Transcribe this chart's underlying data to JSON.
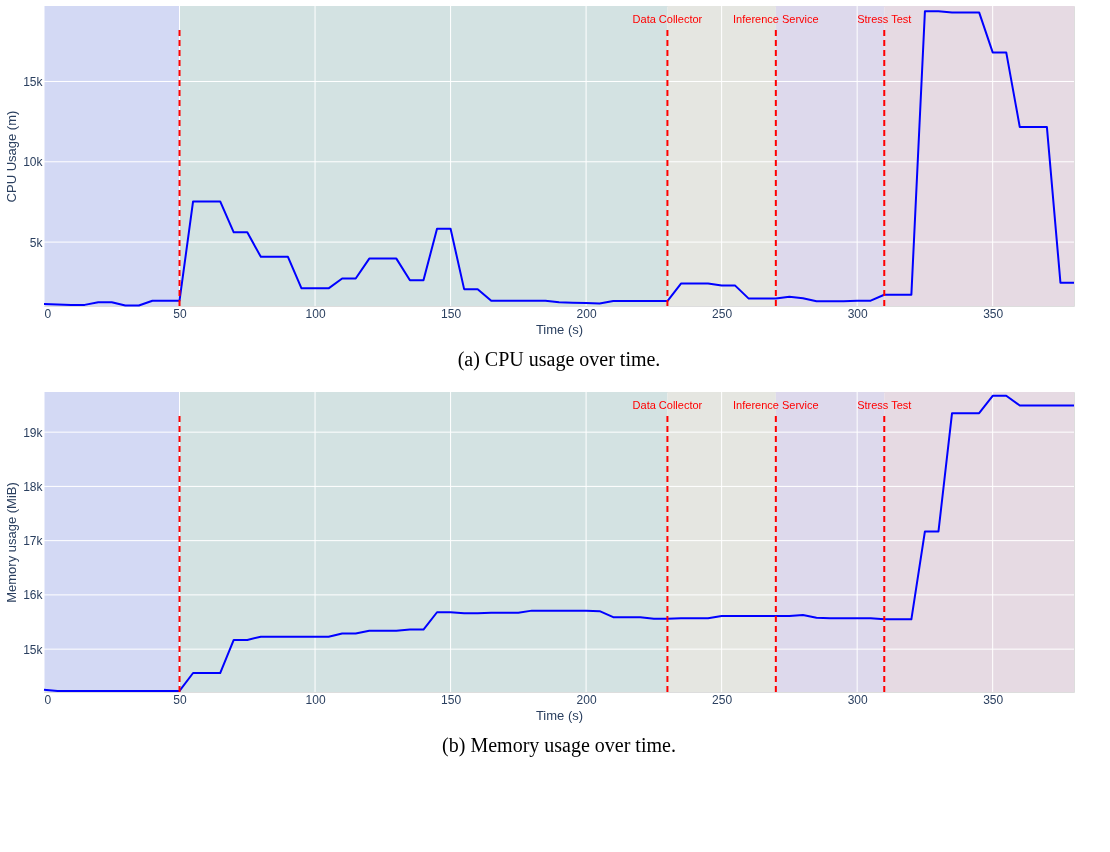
{
  "chart_data": [
    {
      "type": "line",
      "xlabel": "Time (s)",
      "ylabel": "CPU Usage (m)",
      "annotations": [
        "(a) CPU usage over time."
      ],
      "x": [
        0,
        5,
        10,
        15,
        20,
        25,
        30,
        35,
        40,
        45,
        50,
        55,
        60,
        65,
        70,
        75,
        80,
        85,
        90,
        95,
        100,
        105,
        110,
        115,
        120,
        125,
        130,
        135,
        140,
        145,
        150,
        155,
        160,
        165,
        170,
        175,
        180,
        185,
        190,
        195,
        200,
        205,
        210,
        215,
        220,
        225,
        230,
        235,
        240,
        245,
        250,
        255,
        260,
        265,
        270,
        275,
        280,
        285,
        290,
        295,
        300,
        305,
        310,
        315,
        320,
        325,
        330,
        335,
        340,
        345,
        350,
        355,
        360,
        365,
        370,
        375,
        380
      ],
      "series": [
        {
          "color": "#0000ff",
          "values": [
            1140,
            1110,
            1090,
            1090,
            1250,
            1250,
            1050,
            1050,
            1350,
            1350,
            1350,
            7530,
            7530,
            7530,
            5610,
            5610,
            4080,
            4080,
            4080,
            2120,
            2120,
            2120,
            2730,
            2730,
            3970,
            3970,
            3970,
            2620,
            2620,
            5830,
            5830,
            2070,
            2070,
            1350,
            1350,
            1350,
            1350,
            1350,
            1250,
            1230,
            1200,
            1180,
            1330,
            1330,
            1330,
            1330,
            1330,
            2420,
            2420,
            2420,
            2290,
            2290,
            1480,
            1480,
            1480,
            1590,
            1500,
            1310,
            1310,
            1310,
            1350,
            1350,
            1720,
            1720,
            1720,
            19370,
            19370,
            19300,
            19300,
            19300,
            16810,
            16810,
            12160,
            12160,
            12160,
            2470,
            2470
          ]
        }
      ],
      "xlim": [
        0,
        380
      ],
      "ylim": [
        1020,
        19700
      ],
      "xticks": [
        0,
        50,
        100,
        150,
        200,
        250,
        300,
        350
      ],
      "yticks": [
        {
          "value": 5000,
          "label": "5k"
        },
        {
          "value": 10000,
          "label": "10k"
        },
        {
          "value": 15000,
          "label": "15k"
        }
      ],
      "grid": true,
      "line_style": "solid",
      "marker": "none",
      "ref_lines": [
        {
          "axis": "x",
          "value": 50,
          "color": "#ff0000",
          "line_style": "dashed"
        },
        {
          "axis": "x",
          "value": 230,
          "label": "Data Collector",
          "color": "#ff0000",
          "line_style": "dashed"
        },
        {
          "axis": "x",
          "value": 270,
          "label": "Inference Service",
          "color": "#ff0000",
          "line_style": "dashed"
        },
        {
          "axis": "x",
          "value": 310,
          "label": "Stress Test",
          "color": "#ff0000",
          "line_style": "dashed"
        }
      ],
      "bands": [
        {
          "axis": "x",
          "from": 0,
          "to": 50,
          "color": "#d3d9f4"
        },
        {
          "axis": "x",
          "from": 50,
          "to": 230,
          "color": "#d3e2e2"
        },
        {
          "axis": "x",
          "from": 230,
          "to": 270,
          "color": "#e5e6e1"
        },
        {
          "axis": "x",
          "from": 270,
          "to": 310,
          "color": "#ddd9ec"
        },
        {
          "axis": "x",
          "from": 310,
          "to": 380,
          "color": "#e6dae3"
        }
      ]
    },
    {
      "type": "line",
      "xlabel": "Time (s)",
      "ylabel": "Memory usage (MiB)",
      "annotations": [
        "(b) Memory usage over time."
      ],
      "x": [
        0,
        5,
        10,
        15,
        20,
        25,
        30,
        35,
        40,
        45,
        50,
        55,
        60,
        65,
        70,
        75,
        80,
        85,
        90,
        95,
        100,
        105,
        110,
        115,
        120,
        125,
        130,
        135,
        140,
        145,
        150,
        155,
        160,
        165,
        170,
        175,
        180,
        185,
        190,
        195,
        200,
        205,
        210,
        215,
        220,
        225,
        230,
        235,
        240,
        245,
        250,
        255,
        260,
        265,
        270,
        275,
        280,
        285,
        290,
        295,
        300,
        305,
        310,
        315,
        320,
        325,
        330,
        335,
        340,
        345,
        350,
        355,
        360,
        365,
        370,
        375,
        380
      ],
      "series": [
        {
          "color": "#0000ff",
          "values": [
            14250,
            14230,
            14230,
            14230,
            14230,
            14230,
            14230,
            14230,
            14230,
            14230,
            14230,
            14560,
            14560,
            14560,
            15170,
            15170,
            15230,
            15230,
            15230,
            15230,
            15230,
            15230,
            15290,
            15290,
            15340,
            15340,
            15340,
            15360,
            15360,
            15680,
            15680,
            15660,
            15660,
            15670,
            15670,
            15670,
            15710,
            15710,
            15710,
            15710,
            15710,
            15700,
            15590,
            15590,
            15590,
            15560,
            15560,
            15570,
            15570,
            15570,
            15610,
            15610,
            15610,
            15610,
            15610,
            15610,
            15630,
            15580,
            15570,
            15570,
            15570,
            15570,
            15550,
            15550,
            15550,
            17170,
            17170,
            19350,
            19350,
            19350,
            19670,
            19670,
            19490,
            19490,
            19490,
            19490,
            19490
          ]
        }
      ],
      "xlim": [
        0,
        380
      ],
      "ylim": [
        14210,
        19740
      ],
      "xticks": [
        0,
        50,
        100,
        150,
        200,
        250,
        300,
        350
      ],
      "yticks": [
        {
          "value": 15000,
          "label": "15k"
        },
        {
          "value": 16000,
          "label": "16k"
        },
        {
          "value": 17000,
          "label": "17k"
        },
        {
          "value": 18000,
          "label": "18k"
        },
        {
          "value": 19000,
          "label": "19k"
        }
      ],
      "grid": true,
      "line_style": "solid",
      "marker": "none",
      "ref_lines": [
        {
          "axis": "x",
          "value": 50,
          "color": "#ff0000",
          "line_style": "dashed"
        },
        {
          "axis": "x",
          "value": 230,
          "label": "Data Collector",
          "color": "#ff0000",
          "line_style": "dashed"
        },
        {
          "axis": "x",
          "value": 270,
          "label": "Inference Service",
          "color": "#ff0000",
          "line_style": "dashed"
        },
        {
          "axis": "x",
          "value": 310,
          "label": "Stress Test",
          "color": "#ff0000",
          "line_style": "dashed"
        }
      ],
      "bands": [
        {
          "axis": "x",
          "from": 0,
          "to": 50,
          "color": "#d3d9f4"
        },
        {
          "axis": "x",
          "from": 50,
          "to": 230,
          "color": "#d3e2e2"
        },
        {
          "axis": "x",
          "from": 230,
          "to": 270,
          "color": "#e5e6e1"
        },
        {
          "axis": "x",
          "from": 270,
          "to": 310,
          "color": "#ddd9ec"
        },
        {
          "axis": "x",
          "from": 310,
          "to": 380,
          "color": "#e6dae3"
        }
      ]
    }
  ]
}
